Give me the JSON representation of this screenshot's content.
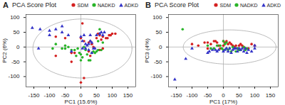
{
  "chart_data": [
    {
      "type": "scatter",
      "title": "PCA Score Plot",
      "annotations": [
        "A"
      ],
      "xlabel": "PC1 (15.6%)",
      "ylabel": "PC2 (6%)",
      "xlim": [
        -175,
        175
      ],
      "ylim": [
        -135,
        110
      ],
      "xticks": [
        -150,
        -100,
        -50,
        0,
        50,
        100,
        150
      ],
      "yticks": [
        -100,
        -50,
        0,
        50,
        100
      ],
      "legend": "upper right",
      "ellipse": {
        "cx": 5,
        "cy": -5,
        "rx": 158,
        "ry": 100
      },
      "reference_lines": {
        "x": [
          0
        ],
        "y": [
          0
        ]
      },
      "series": [
        {
          "name": "SDM",
          "color": "#d42020",
          "marker": "circle",
          "values": [
            [
              -30,
              -20
            ],
            [
              -50,
              30
            ],
            [
              -80,
              35
            ],
            [
              -80,
              -30
            ],
            [
              -30,
              -50
            ],
            [
              -20,
              -20
            ],
            [
              0,
              -120
            ],
            [
              10,
              -105
            ],
            [
              0,
              30
            ],
            [
              10,
              20
            ],
            [
              25,
              15
            ],
            [
              30,
              20
            ],
            [
              25,
              -15
            ],
            [
              30,
              -30
            ],
            [
              35,
              10
            ],
            [
              40,
              0
            ],
            [
              50,
              30
            ],
            [
              55,
              45
            ],
            [
              60,
              40
            ],
            [
              60,
              -10
            ],
            [
              65,
              25
            ],
            [
              70,
              35
            ],
            [
              70,
              -5
            ],
            [
              80,
              30
            ],
            [
              85,
              30
            ],
            [
              90,
              40
            ],
            [
              95,
              40
            ],
            [
              100,
              45
            ],
            [
              110,
              45
            ],
            [
              5,
              80
            ]
          ]
        },
        {
          "name": "NADKD",
          "color": "#28b428",
          "marker": "circle",
          "values": [
            [
              -90,
              -5
            ],
            [
              -80,
              10
            ],
            [
              -60,
              -5
            ],
            [
              -50,
              5
            ],
            [
              -50,
              -5
            ],
            [
              -40,
              0
            ],
            [
              -30,
              -10
            ],
            [
              -20,
              -10
            ],
            [
              -15,
              -30
            ],
            [
              -10,
              -5
            ],
            [
              -5,
              -20
            ],
            [
              0,
              -25
            ],
            [
              0,
              -45
            ],
            [
              5,
              -35
            ],
            [
              10,
              0
            ],
            [
              15,
              -10
            ],
            [
              20,
              -25
            ],
            [
              25,
              -45
            ],
            [
              30,
              -45
            ],
            [
              35,
              -20
            ],
            [
              40,
              -15
            ],
            [
              45,
              -20
            ],
            [
              50,
              -15
            ],
            [
              55,
              -10
            ],
            [
              55,
              20
            ],
            [
              60,
              60
            ],
            [
              65,
              -10
            ],
            [
              70,
              15
            ]
          ]
        },
        {
          "name": "ADKD",
          "color": "#3535c8",
          "marker": "triangle",
          "values": [
            [
              -130,
              60
            ],
            [
              -100,
              55
            ],
            [
              -100,
              40
            ],
            [
              -80,
              60
            ],
            [
              -60,
              70
            ],
            [
              -60,
              50
            ],
            [
              -40,
              40
            ],
            [
              -30,
              -15
            ],
            [
              0,
              35
            ],
            [
              5,
              20
            ],
            [
              5,
              -5
            ],
            [
              10,
              40
            ],
            [
              15,
              10
            ],
            [
              15,
              -5
            ],
            [
              20,
              5
            ],
            [
              25,
              10
            ],
            [
              25,
              -10
            ],
            [
              30,
              40
            ],
            [
              30,
              20
            ],
            [
              35,
              15
            ],
            [
              35,
              -20
            ],
            [
              40,
              -5
            ],
            [
              45,
              -5
            ],
            [
              50,
              40
            ],
            [
              60,
              45
            ],
            [
              65,
              50
            ],
            [
              70,
              40
            ],
            [
              75,
              50
            ],
            [
              -155,
              65
            ],
            [
              -135,
              -5
            ]
          ]
        }
      ]
    },
    {
      "type": "scatter",
      "title": "PCA Score Plot",
      "annotations": [
        "B"
      ],
      "xlabel": "PC1 (17%)",
      "ylabel": "PC3 (4%)",
      "xlim": [
        -175,
        175
      ],
      "ylim": [
        -135,
        110
      ],
      "xticks": [
        -150,
        -100,
        -50,
        0,
        50,
        100,
        150
      ],
      "yticks": [
        -100,
        -50,
        0,
        50,
        100
      ],
      "legend": "upper right",
      "ellipse": {
        "cx": 20,
        "cy": 0,
        "rx": 148,
        "ry": 58
      },
      "reference_lines": {
        "x": [
          0
        ],
        "y": [
          0
        ]
      },
      "series": [
        {
          "name": "SDM",
          "color": "#d42020",
          "marker": "circle",
          "values": [
            [
              -100,
              10
            ],
            [
              -80,
              5
            ],
            [
              -60,
              15
            ],
            [
              -50,
              15
            ],
            [
              -50,
              -5
            ],
            [
              -40,
              10
            ],
            [
              -30,
              20
            ],
            [
              -25,
              20
            ],
            [
              -20,
              15
            ],
            [
              -15,
              5
            ],
            [
              -10,
              -5
            ],
            [
              0,
              5
            ],
            [
              0,
              20
            ],
            [
              5,
              15
            ],
            [
              10,
              20
            ],
            [
              15,
              10
            ],
            [
              20,
              15
            ],
            [
              25,
              10
            ],
            [
              30,
              5
            ],
            [
              35,
              0
            ],
            [
              40,
              5
            ],
            [
              45,
              -5
            ],
            [
              50,
              5
            ],
            [
              55,
              10
            ],
            [
              60,
              5
            ],
            [
              65,
              0
            ],
            [
              70,
              -5
            ],
            [
              80,
              -5
            ],
            [
              90,
              10
            ],
            [
              100,
              5
            ]
          ]
        },
        {
          "name": "NADKD",
          "color": "#28b428",
          "marker": "circle",
          "values": [
            [
              -130,
              60
            ],
            [
              -50,
              5
            ],
            [
              -40,
              -5
            ],
            [
              -30,
              -5
            ],
            [
              -20,
              5
            ],
            [
              -10,
              5
            ],
            [
              -5,
              -5
            ],
            [
              0,
              -10
            ],
            [
              5,
              10
            ],
            [
              10,
              -5
            ],
            [
              15,
              -10
            ],
            [
              20,
              -5
            ],
            [
              25,
              -15
            ],
            [
              30,
              0
            ],
            [
              35,
              -5
            ],
            [
              40,
              -15
            ],
            [
              45,
              -5
            ],
            [
              50,
              -10
            ],
            [
              55,
              -10
            ],
            [
              65,
              0
            ],
            [
              70,
              -10
            ],
            [
              75,
              -5
            ],
            [
              0,
              20
            ],
            [
              10,
              15
            ]
          ]
        },
        {
          "name": "ADKD",
          "color": "#3535c8",
          "marker": "triangle",
          "values": [
            [
              -155,
              -110
            ],
            [
              -120,
              -40
            ],
            [
              -100,
              -5
            ],
            [
              -50,
              -20
            ],
            [
              -45,
              -15
            ],
            [
              -35,
              -10
            ],
            [
              -25,
              -10
            ],
            [
              -20,
              -15
            ],
            [
              -15,
              -10
            ],
            [
              0,
              -15
            ],
            [
              5,
              -10
            ],
            [
              10,
              -5
            ],
            [
              15,
              -15
            ],
            [
              20,
              -5
            ],
            [
              25,
              -20
            ],
            [
              30,
              -10
            ],
            [
              35,
              -5
            ],
            [
              40,
              -5
            ],
            [
              45,
              -15
            ],
            [
              50,
              -5
            ],
            [
              55,
              -10
            ],
            [
              60,
              -5
            ],
            [
              65,
              -15
            ],
            [
              70,
              -5
            ],
            [
              75,
              -20
            ],
            [
              80,
              -10
            ],
            [
              90,
              -15
            ],
            [
              100,
              -5
            ],
            [
              100,
              5
            ]
          ]
        }
      ]
    }
  ]
}
